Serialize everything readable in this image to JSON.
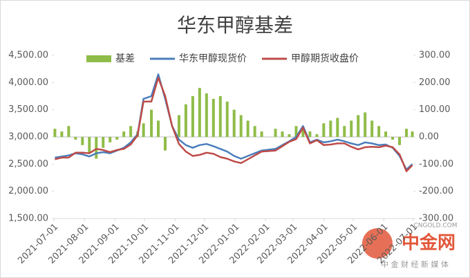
{
  "chart_data": {
    "type": "combo",
    "title": "华东甲醇基差",
    "x": [
      "2021-07-02",
      "2021-07-09",
      "2021-07-16",
      "2021-07-23",
      "2021-07-30",
      "2021-08-06",
      "2021-08-13",
      "2021-08-20",
      "2021-08-27",
      "2021-09-03",
      "2021-09-10",
      "2021-09-17",
      "2021-09-24",
      "2021-09-30",
      "2021-10-08",
      "2021-10-15",
      "2021-10-22",
      "2021-10-29",
      "2021-11-05",
      "2021-11-12",
      "2021-11-19",
      "2021-11-26",
      "2021-12-03",
      "2021-12-10",
      "2021-12-17",
      "2021-12-24",
      "2021-12-31",
      "2022-01-07",
      "2022-01-14",
      "2022-01-21",
      "2022-01-28",
      "2022-02-11",
      "2022-02-18",
      "2022-02-25",
      "2022-03-04",
      "2022-03-11",
      "2022-03-18",
      "2022-03-25",
      "2022-04-01",
      "2022-04-08",
      "2022-04-15",
      "2022-04-22",
      "2022-04-29",
      "2022-05-06",
      "2022-05-13",
      "2022-05-20",
      "2022-05-27",
      "2022-06-03",
      "2022-06-10",
      "2022-06-17",
      "2022-06-24",
      "2022-06-30"
    ],
    "series": [
      {
        "name": "基差",
        "type": "bar",
        "axis": "y2",
        "color": "#8fbc48",
        "values": [
          30,
          20,
          40,
          -10,
          -30,
          -60,
          -80,
          -40,
          -20,
          -10,
          20,
          40,
          20,
          50,
          100,
          60,
          -50,
          0,
          80,
          120,
          150,
          180,
          160,
          140,
          150,
          130,
          100,
          80,
          60,
          40,
          20,
          30,
          20,
          10,
          40,
          30,
          20,
          10,
          50,
          60,
          70,
          40,
          60,
          80,
          90,
          60,
          40,
          20,
          -10,
          -30,
          30,
          20
        ]
      },
      {
        "name": "华东甲醇现货价",
        "type": "line",
        "color": "#4a7ebb",
        "values": [
          2620,
          2640,
          2660,
          2700,
          2680,
          2640,
          2700,
          2720,
          2700,
          2750,
          2800,
          2900,
          3050,
          3700,
          3750,
          4150,
          3700,
          3200,
          2950,
          2850,
          2800,
          2850,
          2870,
          2830,
          2780,
          2730,
          2650,
          2600,
          2650,
          2700,
          2750,
          2780,
          2850,
          2920,
          3000,
          3200,
          2900,
          2950,
          2900,
          2920,
          2950,
          2920,
          2880,
          2850,
          2900,
          2880,
          2850,
          2860,
          2800,
          2650,
          2400,
          2500
        ]
      },
      {
        "name": "甲醇期货收盘价",
        "type": "line",
        "color": "#be4b48",
        "values": [
          2590,
          2620,
          2620,
          2710,
          2710,
          2700,
          2780,
          2760,
          2720,
          2760,
          2780,
          2860,
          3030,
          3650,
          3650,
          4090,
          3750,
          3200,
          2870,
          2730,
          2650,
          2670,
          2710,
          2690,
          2630,
          2600,
          2550,
          2520,
          2590,
          2660,
          2730,
          2750,
          2830,
          2910,
          2960,
          3170,
          2880,
          2940,
          2850,
          2860,
          2880,
          2880,
          2820,
          2770,
          2810,
          2820,
          2810,
          2840,
          2810,
          2680,
          2370,
          2480
        ]
      }
    ],
    "xlim": [
      "2021-07-01",
      "2022-07-01"
    ],
    "xticks": [
      "2021-07-01",
      "2021-08-01",
      "2021-09-01",
      "2021-10-01",
      "2021-11-01",
      "2021-12-01",
      "2022-01-01",
      "2022-02-01",
      "2022-03-01",
      "2022-04-01",
      "2022-05-01",
      "2022-06-01",
      "2022-07-01"
    ],
    "ylim": [
      1500,
      4500
    ],
    "yticks": [
      {
        "value": 1500,
        "label": "1,500.00"
      },
      {
        "value": 2000,
        "label": "2,000.00"
      },
      {
        "value": 2500,
        "label": "2,500.00"
      },
      {
        "value": 3000,
        "label": "3,000.00"
      },
      {
        "value": 3500,
        "label": "3,500.00"
      },
      {
        "value": 4000,
        "label": "4,000.00"
      },
      {
        "value": 4500,
        "label": "4,500.00"
      }
    ],
    "y2lim": [
      -300,
      300
    ],
    "y2ticks": [
      {
        "value": -300,
        "label": "-300.00"
      },
      {
        "value": -200,
        "label": "-200.00"
      },
      {
        "value": -100,
        "label": "-100.00"
      },
      {
        "value": 0,
        "label": "0.00"
      },
      {
        "value": 100,
        "label": "100.00"
      },
      {
        "value": 200,
        "label": "200.00"
      },
      {
        "value": 300,
        "label": "300.00"
      }
    ],
    "legend": "top"
  },
  "watermark": {
    "logo": "中金网",
    "tagline": "中 金 财 经 新 媒 体",
    "site": "CNGOLD.COM"
  }
}
